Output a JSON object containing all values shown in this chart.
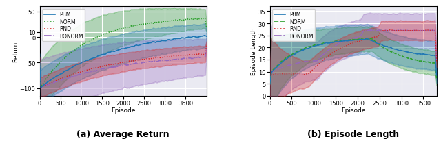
{
  "left_caption": "(a) Average Return",
  "right_caption": "(b) Episode Length",
  "left_xlabel": "Episode",
  "right_xlabel": "Episode",
  "left_ylabel": "Return",
  "right_ylabel": "Episode Length",
  "legend_labels": [
    "PBM",
    "NORM",
    "RND",
    "BONORM"
  ],
  "left_line_styles": [
    "-",
    ":",
    ":",
    "-."
  ],
  "right_line_styles": [
    "-",
    "--",
    ":",
    "-."
  ],
  "line_colors": [
    "#1f77b4",
    "#2ca02c",
    "#d62728",
    "#9467bd"
  ],
  "left_xlim": [
    0,
    4000
  ],
  "left_ylim": [
    -115,
    60
  ],
  "right_xlim": [
    0,
    3800
  ],
  "right_ylim": [
    0,
    37
  ],
  "left_xticks": [
    0,
    500,
    1000,
    1500,
    2000,
    2500,
    3000,
    3500
  ],
  "left_yticks": [
    -100,
    -50,
    0,
    10,
    50
  ],
  "right_xticks": [
    0,
    500,
    1000,
    1500,
    2000,
    2500,
    3000,
    3500
  ],
  "right_yticks": [
    0,
    5,
    10,
    15,
    20,
    25,
    30,
    35
  ],
  "background_color": "#eaeaf2",
  "grid_color": "white",
  "fill_alpha": 0.3,
  "lw": 1.0
}
